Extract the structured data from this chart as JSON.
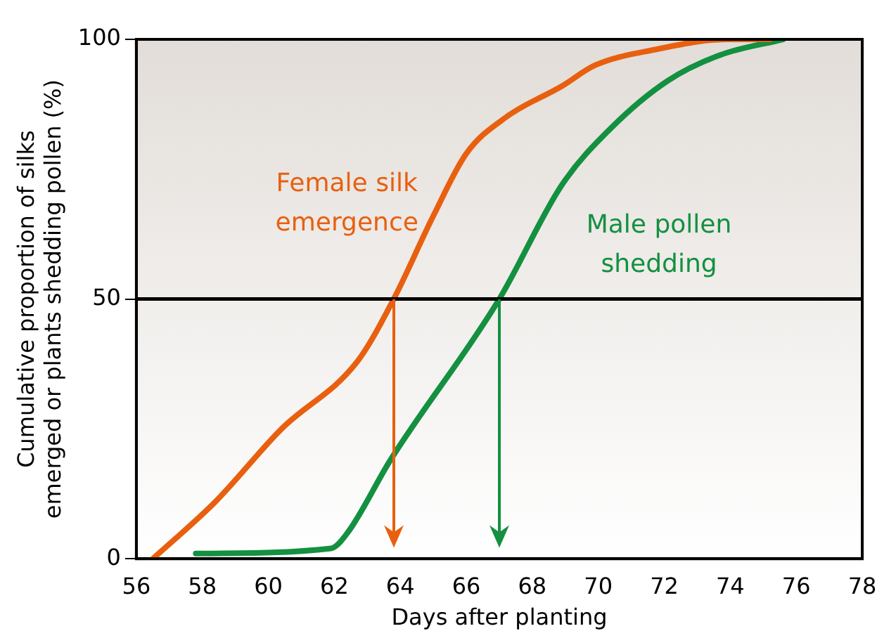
{
  "chart_data": {
    "type": "line",
    "xlabel": "Days after planting",
    "ylabel": "Cumulative proportion of silks\nemerged or plants shedding pollen (%)",
    "xlim": [
      56,
      78
    ],
    "xticks": [
      56,
      58,
      60,
      62,
      64,
      66,
      68,
      70,
      72,
      74,
      76,
      78
    ],
    "ylim": [
      0,
      100
    ],
    "yticks": [
      0,
      50,
      100
    ],
    "grid": false,
    "legend": false,
    "marker": "none",
    "line_style": "solid",
    "series": [
      {
        "name": "Female silk\nemergence",
        "color": "#e8600f",
        "x": [
          56.5,
          58.4,
          60.4,
          62.7,
          63.8,
          65,
          66,
          67.2,
          68.9,
          69.9,
          71.7,
          73.9,
          75.2
        ],
        "values": [
          0,
          11,
          25,
          38,
          50,
          66,
          78,
          85,
          91,
          95,
          98,
          100,
          100
        ]
      },
      {
        "name": "Male pollen\nshedding",
        "color": "#139040",
        "x": [
          57.8,
          61.9,
          62.4,
          63.7,
          67,
          68.9,
          70.4,
          72.1,
          73.7,
          75.6
        ],
        "values": [
          1,
          2,
          5,
          19,
          50,
          72,
          83,
          92,
          97,
          100
        ]
      }
    ],
    "ref_lines": [
      {
        "axis": "y",
        "value": 50,
        "color": "#000000"
      },
      {
        "axis": "x",
        "value": 63.8,
        "color": "#e8600f"
      },
      {
        "axis": "x",
        "value": 67,
        "color": "#139040"
      }
    ]
  }
}
